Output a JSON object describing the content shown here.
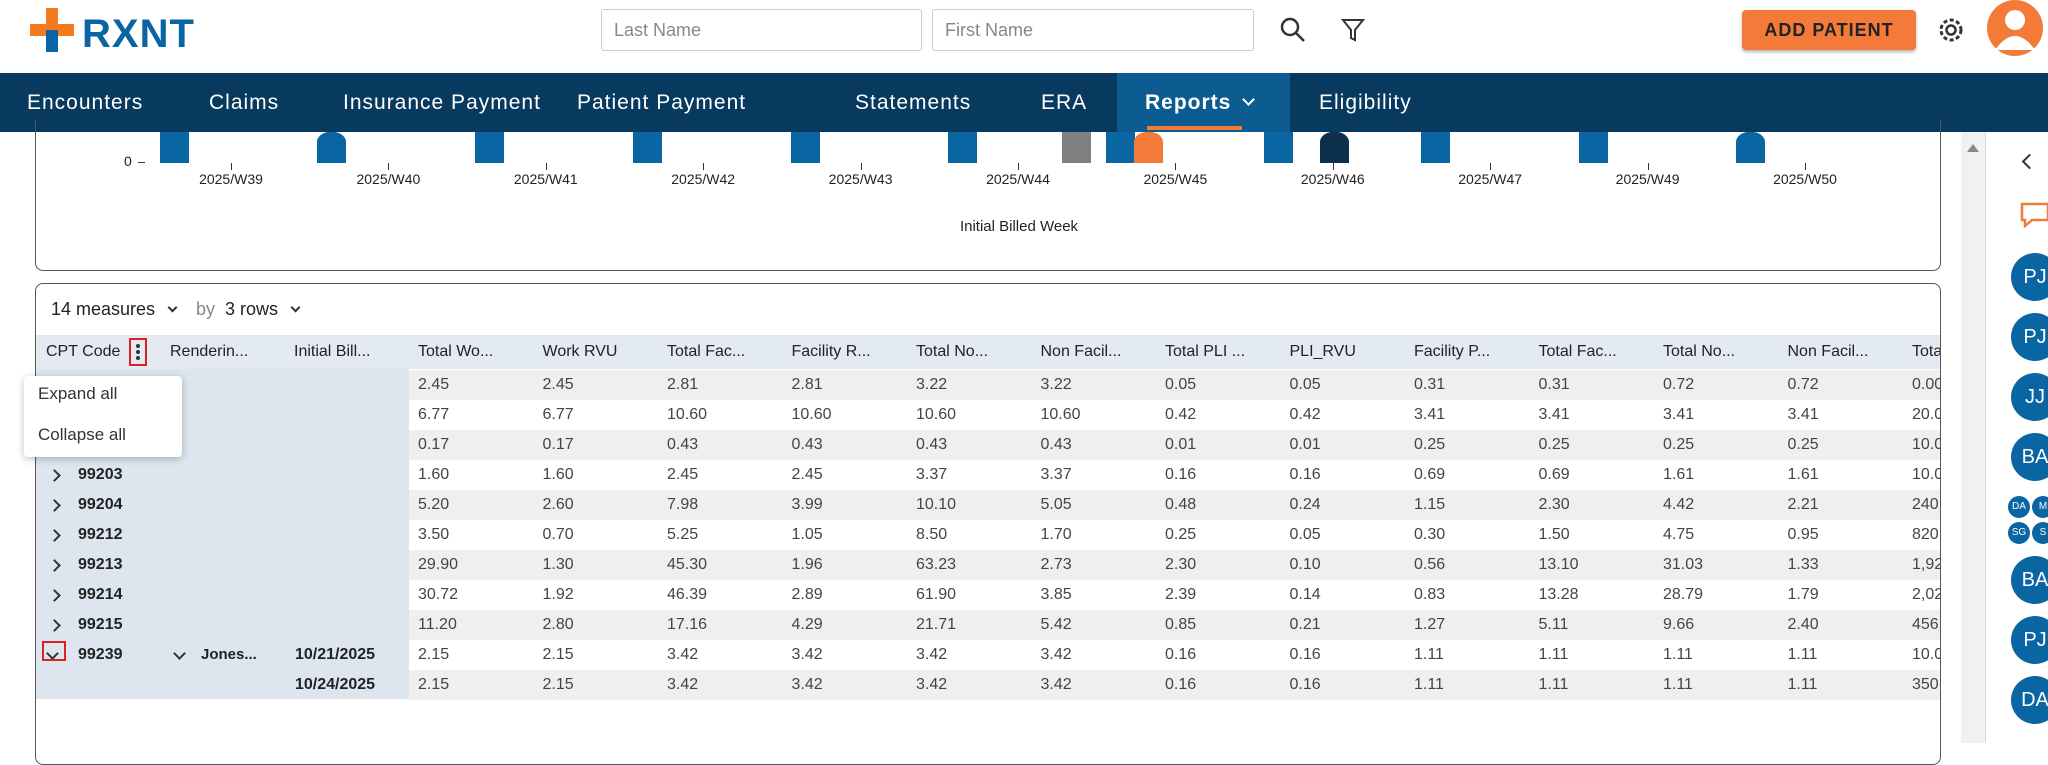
{
  "header": {
    "logo": "RXNT",
    "last_name": "Last Name",
    "first_name": "First Name",
    "add_patient": "ADD PATIENT"
  },
  "nav": [
    "Encounters",
    "Claims",
    "Insurance Payment",
    "Patient Payment",
    "Statements",
    "ERA",
    "Reports",
    "Eligibility"
  ],
  "chart": {
    "y_tick": "0",
    "x_labels": [
      "2025/W39",
      "2025/W40",
      "2025/W41",
      "2025/W42",
      "2025/W43",
      "2025/W44",
      "2025/W45",
      "2025/W46",
      "2025/W47",
      "2025/W49",
      "2025/W50"
    ],
    "x_title": "Initial Billed Week"
  },
  "pivot": {
    "measures": "14 measures",
    "by": "by",
    "rows": "3 rows"
  },
  "table": {
    "columns": [
      "CPT Code",
      "Renderin...",
      "Initial Bill...",
      "Total Wo...",
      "Work RVU",
      "Total Fac...",
      "Facility R...",
      "Total No...",
      "Non Facil...",
      "Total PLI ...",
      "PLI_RVU",
      "Facility P...",
      "Total Fac...",
      "Total No...",
      "Non Facil...",
      "Tota"
    ],
    "rows": [
      {
        "values": [
          "2.45",
          "2.45",
          "2.81",
          "2.81",
          "3.22",
          "3.22",
          "0.05",
          "0.05",
          "0.31",
          "0.31",
          "0.72",
          "0.72",
          "0.00"
        ]
      },
      {
        "values": [
          "6.77",
          "6.77",
          "10.60",
          "10.60",
          "10.60",
          "10.60",
          "0.42",
          "0.42",
          "3.41",
          "3.41",
          "3.41",
          "3.41",
          "20.0"
        ]
      },
      {
        "values": [
          "0.17",
          "0.17",
          "0.43",
          "0.43",
          "0.43",
          "0.43",
          "0.01",
          "0.01",
          "0.25",
          "0.25",
          "0.25",
          "0.25",
          "10.0"
        ]
      },
      {
        "cpt": "99203",
        "values": [
          "1.60",
          "1.60",
          "2.45",
          "2.45",
          "3.37",
          "3.37",
          "0.16",
          "0.16",
          "0.69",
          "0.69",
          "1.61",
          "1.61",
          "10.0"
        ]
      },
      {
        "cpt": "99204",
        "values": [
          "5.20",
          "2.60",
          "7.98",
          "3.99",
          "10.10",
          "5.05",
          "0.48",
          "0.24",
          "1.15",
          "2.30",
          "4.42",
          "2.21",
          "240."
        ]
      },
      {
        "cpt": "99212",
        "values": [
          "3.50",
          "0.70",
          "5.25",
          "1.05",
          "8.50",
          "1.70",
          "0.25",
          "0.05",
          "0.30",
          "1.50",
          "4.75",
          "0.95",
          "820."
        ]
      },
      {
        "cpt": "99213",
        "values": [
          "29.90",
          "1.30",
          "45.30",
          "1.96",
          "63.23",
          "2.73",
          "2.30",
          "0.10",
          "0.56",
          "13.10",
          "31.03",
          "1.33",
          "1,92"
        ]
      },
      {
        "cpt": "99214",
        "values": [
          "30.72",
          "1.92",
          "46.39",
          "2.89",
          "61.90",
          "3.85",
          "2.39",
          "0.14",
          "0.83",
          "13.28",
          "28.79",
          "1.79",
          "2,02"
        ]
      },
      {
        "cpt": "99215",
        "values": [
          "11.20",
          "2.80",
          "17.16",
          "4.29",
          "21.71",
          "5.42",
          "0.85",
          "0.21",
          "1.27",
          "5.11",
          "9.66",
          "2.40",
          "456."
        ]
      },
      {
        "cpt": "99239",
        "provider": "Jones...",
        "date": "10/21/2025",
        "values": [
          "2.15",
          "2.15",
          "3.42",
          "3.42",
          "3.42",
          "3.42",
          "0.16",
          "0.16",
          "1.11",
          "1.11",
          "1.11",
          "1.11",
          "10.0"
        ]
      },
      {
        "date": "10/24/2025",
        "values": [
          "2.15",
          "2.15",
          "3.42",
          "3.42",
          "3.42",
          "3.42",
          "0.16",
          "0.16",
          "1.11",
          "1.11",
          "1.11",
          "1.11",
          "350."
        ]
      }
    ]
  },
  "menu": [
    "Expand all",
    "Collapse all"
  ],
  "sidebar": {
    "avatars": [
      "PJ",
      "PJ",
      "JJ",
      "BA"
    ],
    "small": [
      "DA",
      "M",
      "SG",
      "S"
    ],
    "avatars2": [
      "BA",
      "PJ",
      "DA"
    ]
  }
}
